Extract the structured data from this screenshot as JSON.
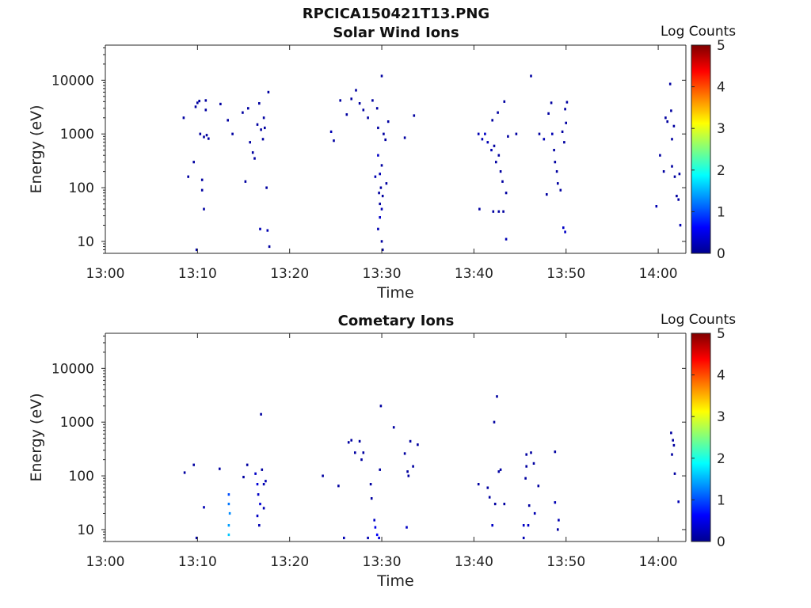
{
  "figure_title": "RPCICA150421T13.PNG",
  "colors": {
    "solar_wind_marks": "#00008f",
    "colormap": "jet",
    "axis": "#262626"
  },
  "chart_data": [
    {
      "type": "heatmap",
      "title": "Solar Wind Ions",
      "xlabel": "Time",
      "ylabel": "Energy (eV)",
      "x_ticks": [
        "13:00",
        "13:10",
        "13:20",
        "13:30",
        "13:40",
        "13:50",
        "14:00"
      ],
      "y_ticks": [
        "10",
        "100",
        "1000",
        "10000"
      ],
      "xlim_minutes_after_1300": [
        0,
        63
      ],
      "ylim_eV": [
        6,
        45000
      ],
      "y_scale": "log",
      "colorbar": {
        "label": "Log Counts",
        "ticks": [
          "0",
          "1",
          "2",
          "3",
          "4",
          "5"
        ],
        "range": [
          0,
          5
        ]
      },
      "points": [
        [
          8.5,
          2000,
          0.1
        ],
        [
          9.0,
          160,
          0.1
        ],
        [
          9.6,
          300,
          0.1
        ],
        [
          9.8,
          3200,
          0.1
        ],
        [
          10.0,
          3800,
          0.1
        ],
        [
          10.2,
          4100,
          0.1
        ],
        [
          10.3,
          1000,
          0.1
        ],
        [
          10.5,
          140,
          0.1
        ],
        [
          10.5,
          90,
          0.1
        ],
        [
          10.7,
          880,
          0.1
        ],
        [
          10.7,
          40,
          0.1
        ],
        [
          10.9,
          4200,
          0.1
        ],
        [
          10.9,
          2800,
          0.1
        ],
        [
          11.0,
          950,
          0.1
        ],
        [
          11.2,
          820,
          0.1
        ],
        [
          12.5,
          3600,
          0.1
        ],
        [
          13.3,
          1800,
          0.1
        ],
        [
          13.8,
          1000,
          0.1
        ],
        [
          14.9,
          2500,
          0.1
        ],
        [
          15.2,
          130,
          0.1
        ],
        [
          15.5,
          3000,
          0.1
        ],
        [
          15.7,
          700,
          0.1
        ],
        [
          16.0,
          450,
          0.1
        ],
        [
          16.2,
          350,
          0.1
        ],
        [
          16.5,
          1500,
          0.1
        ],
        [
          16.7,
          3700,
          0.1
        ],
        [
          16.9,
          1200,
          0.1
        ],
        [
          17.1,
          800,
          0.1
        ],
        [
          17.2,
          2000,
          0.1
        ],
        [
          17.3,
          1300,
          0.1
        ],
        [
          17.5,
          100,
          0.1
        ],
        [
          17.7,
          6000,
          0.1
        ],
        [
          17.6,
          16,
          0.2
        ],
        [
          17.8,
          8,
          0.1
        ],
        [
          9.9,
          7,
          0.2
        ],
        [
          16.8,
          17,
          0.2
        ],
        [
          24.5,
          1100,
          0.2
        ],
        [
          24.8,
          750,
          0.1
        ],
        [
          25.5,
          4200,
          0.1
        ],
        [
          26.2,
          2300,
          0.1
        ],
        [
          26.7,
          4500,
          0.1
        ],
        [
          27.2,
          6500,
          0.1
        ],
        [
          27.6,
          3700,
          0.1
        ],
        [
          28.0,
          2800,
          0.1
        ],
        [
          28.5,
          2000,
          0.1
        ],
        [
          29.0,
          4200,
          0.1
        ],
        [
          29.3,
          160,
          0.2
        ],
        [
          29.5,
          3000,
          0.1
        ],
        [
          29.6,
          1300,
          0.1
        ],
        [
          29.6,
          400,
          0.3
        ],
        [
          29.8,
          180,
          0.2
        ],
        [
          29.9,
          100,
          0.1
        ],
        [
          30.0,
          12000,
          0.1
        ],
        [
          30.0,
          260,
          0.1
        ],
        [
          30.1,
          70,
          0.1
        ],
        [
          30.2,
          1000,
          0.1
        ],
        [
          30.4,
          780,
          0.1
        ],
        [
          29.7,
          80,
          0.1
        ],
        [
          29.8,
          50,
          0.1
        ],
        [
          30.0,
          40,
          0.2
        ],
        [
          29.8,
          28,
          0.3
        ],
        [
          30.0,
          10,
          0.1
        ],
        [
          29.6,
          17,
          0.2
        ],
        [
          30.1,
          7,
          0.1
        ],
        [
          30.5,
          120,
          0.1
        ],
        [
          30.7,
          1700,
          0.1
        ],
        [
          32.5,
          850,
          0.1
        ],
        [
          33.5,
          2200,
          0.1
        ],
        [
          40.5,
          1000,
          0.2
        ],
        [
          40.6,
          40,
          0.1
        ],
        [
          40.9,
          800,
          0.2
        ],
        [
          41.2,
          1000,
          0.3
        ],
        [
          41.5,
          700,
          0.2
        ],
        [
          41.9,
          500,
          0.2
        ],
        [
          42.0,
          1800,
          0.1
        ],
        [
          42.2,
          600,
          0.1
        ],
        [
          42.4,
          300,
          0.1
        ],
        [
          42.6,
          2500,
          0.1
        ],
        [
          42.7,
          400,
          0.1
        ],
        [
          42.9,
          200,
          0.1
        ],
        [
          43.1,
          130,
          0.1
        ],
        [
          43.3,
          4000,
          0.1
        ],
        [
          43.5,
          80,
          0.1
        ],
        [
          42.1,
          36,
          0.1
        ],
        [
          42.7,
          36,
          0.1
        ],
        [
          43.2,
          36,
          0.1
        ],
        [
          43.5,
          11,
          0.2
        ],
        [
          43.7,
          900,
          0.1
        ],
        [
          44.6,
          1000,
          0.1
        ],
        [
          46.2,
          12000,
          0.1
        ],
        [
          47.1,
          1000,
          0.1
        ],
        [
          47.6,
          800,
          0.2
        ],
        [
          47.9,
          75,
          0.1
        ],
        [
          48.1,
          2400,
          0.1
        ],
        [
          48.4,
          3800,
          0.1
        ],
        [
          48.5,
          1000,
          0.2
        ],
        [
          48.7,
          500,
          0.1
        ],
        [
          48.8,
          300,
          0.1
        ],
        [
          49.0,
          200,
          0.1
        ],
        [
          49.1,
          120,
          0.1
        ],
        [
          49.4,
          90,
          0.1
        ],
        [
          49.6,
          1100,
          0.1
        ],
        [
          49.8,
          700,
          0.1
        ],
        [
          49.9,
          2900,
          0.1
        ],
        [
          50.1,
          3900,
          0.1
        ],
        [
          50.0,
          1600,
          0.1
        ],
        [
          49.7,
          18,
          0.3
        ],
        [
          49.9,
          15,
          0.3
        ],
        [
          59.8,
          45,
          0.2
        ],
        [
          60.2,
          400,
          0.1
        ],
        [
          60.6,
          200,
          0.1
        ],
        [
          60.8,
          2000,
          0.1
        ],
        [
          61.0,
          1700,
          0.1
        ],
        [
          61.3,
          8500,
          0.1
        ],
        [
          61.4,
          2700,
          0.1
        ],
        [
          61.5,
          800,
          0.1
        ],
        [
          61.5,
          250,
          0.1
        ],
        [
          61.7,
          1400,
          0.1
        ],
        [
          61.8,
          160,
          0.1
        ],
        [
          62.0,
          70,
          0.1
        ],
        [
          62.2,
          60,
          0.1
        ],
        [
          62.3,
          180,
          0.1
        ],
        [
          62.4,
          20,
          0.2
        ]
      ]
    },
    {
      "type": "heatmap",
      "title": "Cometary Ions",
      "xlabel": "Time",
      "ylabel": "Energy (eV)",
      "x_ticks": [
        "13:00",
        "13:10",
        "13:20",
        "13:30",
        "13:40",
        "13:50",
        "14:00"
      ],
      "y_ticks": [
        "10",
        "100",
        "1000",
        "10000"
      ],
      "xlim_minutes_after_1300": [
        0,
        63
      ],
      "ylim_eV": [
        6,
        45000
      ],
      "y_scale": "log",
      "colorbar": {
        "label": "Log Counts",
        "ticks": [
          "0",
          "1",
          "2",
          "3",
          "4",
          "5"
        ],
        "range": [
          0,
          5
        ]
      },
      "points": [
        [
          8.6,
          115,
          0.1
        ],
        [
          9.6,
          160,
          0.1
        ],
        [
          9.9,
          7,
          0.2
        ],
        [
          10.7,
          26,
          0.2
        ],
        [
          12.4,
          135,
          0.1
        ],
        [
          13.4,
          45,
          1.0
        ],
        [
          13.4,
          30,
          1.2
        ],
        [
          13.5,
          20,
          1.3
        ],
        [
          13.4,
          12,
          1.4
        ],
        [
          13.4,
          8,
          1.6
        ],
        [
          15.0,
          95,
          0.1
        ],
        [
          15.4,
          160,
          0.1
        ],
        [
          16.3,
          110,
          0.3
        ],
        [
          16.5,
          70,
          0.4
        ],
        [
          16.6,
          45,
          0.3
        ],
        [
          16.8,
          30,
          0.4
        ],
        [
          16.5,
          18,
          0.3
        ],
        [
          16.7,
          12,
          0.2
        ],
        [
          16.9,
          1400,
          0.1
        ],
        [
          17.0,
          130,
          0.1
        ],
        [
          17.2,
          70,
          0.2
        ],
        [
          17.4,
          80,
          0.2
        ],
        [
          17.2,
          25,
          0.2
        ],
        [
          23.6,
          100,
          0.1
        ],
        [
          25.3,
          65,
          0.1
        ],
        [
          25.9,
          7,
          0.2
        ],
        [
          26.4,
          420,
          0.1
        ],
        [
          26.7,
          460,
          0.1
        ],
        [
          27.1,
          270,
          0.1
        ],
        [
          27.6,
          440,
          0.1
        ],
        [
          27.8,
          200,
          0.1
        ],
        [
          28.0,
          270,
          0.1
        ],
        [
          28.5,
          7,
          0.2
        ],
        [
          28.8,
          70,
          0.1
        ],
        [
          28.9,
          38,
          0.1
        ],
        [
          29.2,
          15,
          0.3
        ],
        [
          29.3,
          11,
          0.5
        ],
        [
          29.5,
          8,
          0.6
        ],
        [
          29.7,
          7,
          0.4
        ],
        [
          29.9,
          2000,
          0.1
        ],
        [
          29.8,
          130,
          0.1
        ],
        [
          31.3,
          800,
          0.1
        ],
        [
          32.5,
          260,
          0.1
        ],
        [
          32.7,
          11,
          0.3
        ],
        [
          32.8,
          120,
          0.1
        ],
        [
          32.9,
          100,
          0.1
        ],
        [
          33.1,
          440,
          0.1
        ],
        [
          33.4,
          150,
          0.1
        ],
        [
          33.9,
          380,
          0.1
        ],
        [
          40.5,
          70,
          0.1
        ],
        [
          41.5,
          60,
          0.1
        ],
        [
          41.7,
          40,
          0.1
        ],
        [
          42.0,
          12,
          0.3
        ],
        [
          42.2,
          1000,
          0.1
        ],
        [
          42.3,
          30,
          0.1
        ],
        [
          42.5,
          3000,
          0.1
        ],
        [
          42.7,
          120,
          0.1
        ],
        [
          42.9,
          130,
          0.1
        ],
        [
          43.3,
          30,
          0.1
        ],
        [
          45.4,
          7,
          0.2
        ],
        [
          45.4,
          12,
          0.3
        ],
        [
          45.6,
          90,
          0.1
        ],
        [
          45.7,
          150,
          0.1
        ],
        [
          45.7,
          250,
          0.1
        ],
        [
          45.9,
          12,
          0.3
        ],
        [
          46.0,
          28,
          0.1
        ],
        [
          46.2,
          270,
          0.1
        ],
        [
          46.5,
          170,
          0.1
        ],
        [
          46.6,
          20,
          0.2
        ],
        [
          47.0,
          65,
          0.1
        ],
        [
          48.8,
          280,
          0.1
        ],
        [
          48.8,
          32,
          0.2
        ],
        [
          49.2,
          15,
          0.2
        ],
        [
          49.1,
          10,
          0.1
        ],
        [
          61.4,
          630,
          0.1
        ],
        [
          61.6,
          460,
          0.1
        ],
        [
          61.7,
          370,
          0.1
        ],
        [
          61.5,
          250,
          0.1
        ],
        [
          61.8,
          110,
          0.1
        ],
        [
          62.2,
          33,
          0.2
        ]
      ]
    }
  ]
}
